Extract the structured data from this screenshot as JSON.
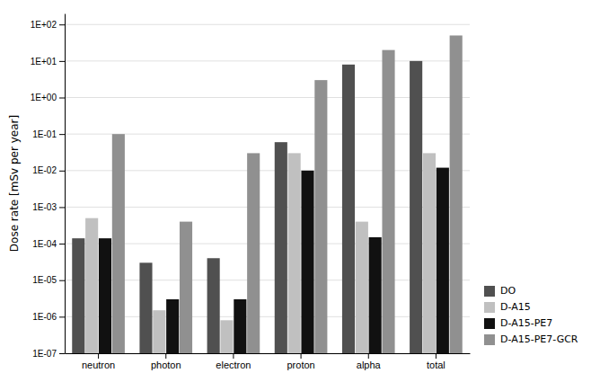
{
  "chart_data": {
    "type": "bar",
    "categories": [
      "neutron",
      "photon",
      "electron",
      "proton",
      "alpha",
      "total"
    ],
    "series": [
      {
        "name": "DO",
        "color": "#505050",
        "values": [
          0.00014,
          3e-05,
          4e-05,
          0.06,
          8.0,
          10.0
        ]
      },
      {
        "name": "D-A15",
        "color": "#c0c0c0",
        "values": [
          0.0005,
          1.5e-06,
          8e-07,
          0.03,
          0.0004,
          0.03
        ]
      },
      {
        "name": "D-A15-PE7",
        "color": "#111111",
        "values": [
          0.00014,
          3e-06,
          3e-06,
          0.01,
          0.00015,
          0.012
        ]
      },
      {
        "name": "D-A15-PE7-GCR",
        "color": "#909090",
        "values": [
          0.1,
          0.0004,
          0.03,
          3.0,
          20.0,
          50.0
        ]
      }
    ],
    "ylabel": "Dose rate [mSv per year]",
    "ylim": [
      1e-07,
      200.0
    ],
    "yticks": [
      {
        "value": 1e-07,
        "label": "1E-07"
      },
      {
        "value": 1e-06,
        "label": "1E-06"
      },
      {
        "value": 1e-05,
        "label": "1E-05"
      },
      {
        "value": 0.0001,
        "label": "1E-04"
      },
      {
        "value": 0.001,
        "label": "1E-03"
      },
      {
        "value": 0.01,
        "label": "1E-02"
      },
      {
        "value": 0.1,
        "label": "1E-01"
      },
      {
        "value": 1.0,
        "label": "1E+00"
      },
      {
        "value": 10.0,
        "label": "1E+01"
      },
      {
        "value": 100.0,
        "label": "1E+02"
      }
    ],
    "log": "y",
    "legend": "lower right",
    "grid": true
  }
}
